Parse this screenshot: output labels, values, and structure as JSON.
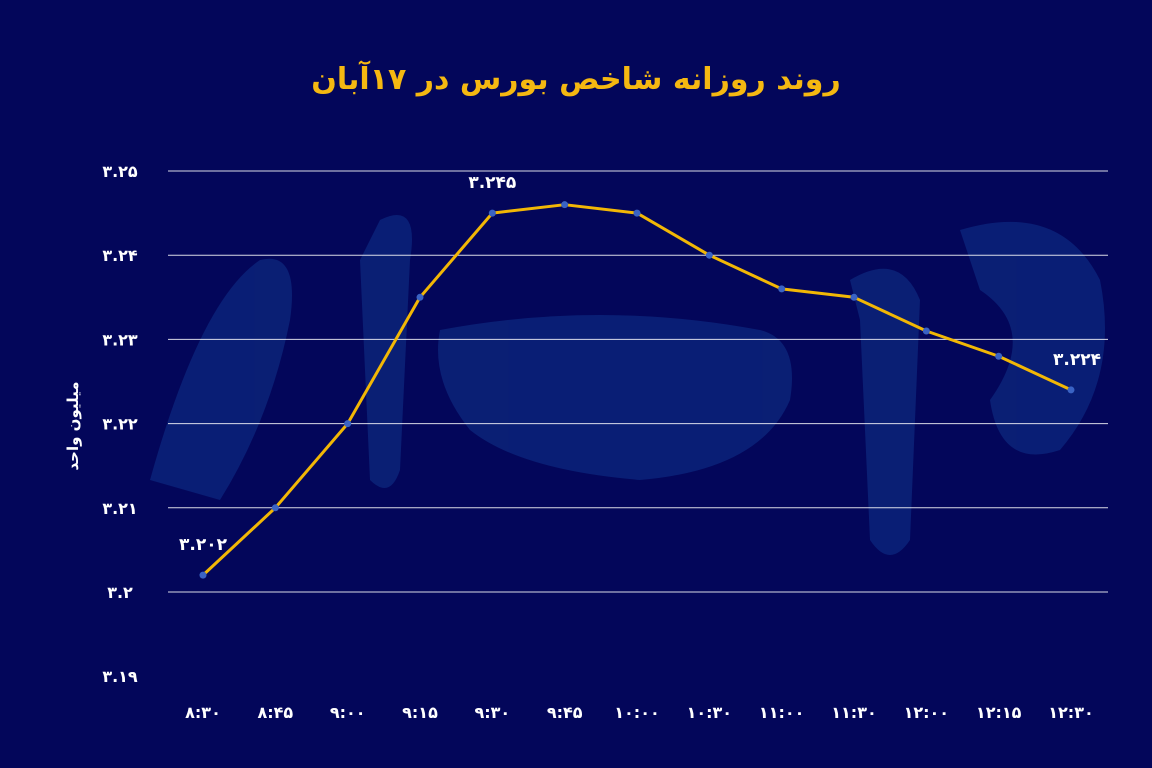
{
  "watermark": "دنیای اقتصاد",
  "chart_data": {
    "type": "line",
    "title": "روند روزانه شاخص بورس در ۱۷آبان",
    "xlabel": "",
    "ylabel": "میلیون واحد",
    "ylim": [
      3.19,
      3.25
    ],
    "grid": true,
    "categories": [
      "8:30",
      "8:45",
      "9:00",
      "9:15",
      "9:30",
      "9:45",
      "10:00",
      "10:30",
      "11:00",
      "11:30",
      "12:00",
      "12:15",
      "12:30"
    ],
    "x_tick_labels": [
      "۸:۳۰",
      "۸:۴۵",
      "۹:۰۰",
      "۹:۱۵",
      "۹:۳۰",
      "۹:۴۵",
      "۱۰:۰۰",
      "۱۰:۳۰",
      "۱۱:۰۰",
      "۱۱:۳۰",
      "۱۲:۰۰",
      "۱۲:۱۵",
      "۱۲:۳۰"
    ],
    "y_ticks": [
      3.19,
      3.2,
      3.21,
      3.22,
      3.23,
      3.24,
      3.25
    ],
    "y_tick_labels": [
      "۳.۱۹",
      "۳.۲",
      "۳.۲۱",
      "۳.۲۲",
      "۳.۲۳",
      "۳.۲۴",
      "۳.۲۵"
    ],
    "values": [
      3.202,
      3.21,
      3.22,
      3.235,
      3.245,
      3.246,
      3.245,
      3.24,
      3.236,
      3.235,
      3.231,
      3.228,
      3.224
    ],
    "data_labels": [
      {
        "index": 0,
        "text": "۳.۲۰۲"
      },
      {
        "index": 4,
        "text": "۳.۲۴۵"
      },
      {
        "index": 12,
        "text": "۳.۲۲۴"
      }
    ],
    "colors": {
      "background": "#03065a",
      "line": "#f2b705",
      "marker": "#3a63c4",
      "title": "#f5b811",
      "grid": "#ffffff"
    }
  }
}
